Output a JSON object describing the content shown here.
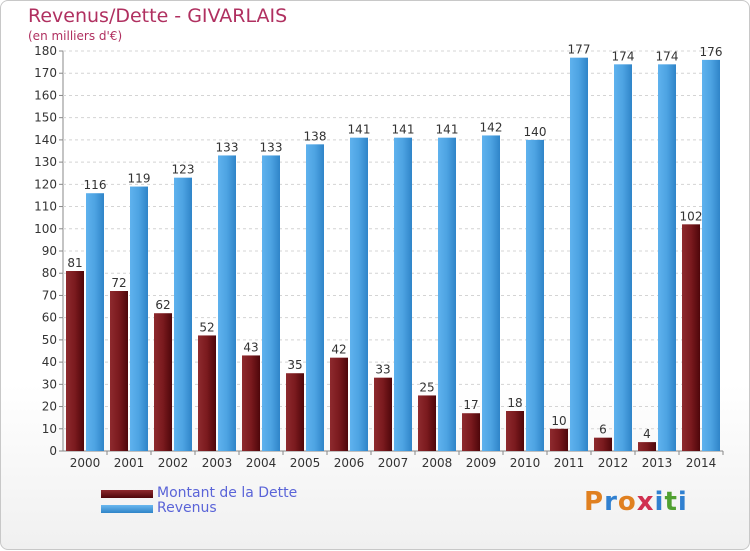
{
  "title": "Revenus/Dette - GIVARLAIS",
  "subtitle": "(en milliers d'€)",
  "brand": {
    "letters": [
      "P",
      "r",
      "o",
      "x",
      "i",
      "t",
      "i"
    ],
    "colors": [
      "#e08020",
      "#3080d0",
      "#e08020",
      "#d03050",
      "#3080d0",
      "#50a030",
      "#3080d0"
    ]
  },
  "legend": [
    {
      "label": "Montant de la Dette",
      "color": "#6b0e14"
    },
    {
      "label": "Revenus",
      "color": "#4a9fe0"
    }
  ],
  "chart_data": {
    "type": "bar",
    "categories": [
      "2000",
      "2001",
      "2002",
      "2003",
      "2004",
      "2005",
      "2006",
      "2007",
      "2008",
      "2009",
      "2010",
      "2011",
      "2012",
      "2013",
      "2014"
    ],
    "series": [
      {
        "name": "Montant de la Dette",
        "color": "#7a1a1e",
        "values": [
          81,
          72,
          62,
          52,
          43,
          35,
          42,
          33,
          25,
          17,
          18,
          10,
          6,
          4,
          102
        ]
      },
      {
        "name": "Revenus",
        "color": "#4da3e2",
        "values": [
          116,
          119,
          123,
          133,
          133,
          138,
          141,
          141,
          141,
          142,
          140,
          177,
          174,
          174,
          176
        ]
      }
    ],
    "ylim": [
      0,
      180
    ],
    "yticks": [
      0,
      10,
      20,
      30,
      40,
      50,
      60,
      70,
      80,
      90,
      100,
      110,
      120,
      130,
      140,
      150,
      160,
      170,
      180
    ],
    "grid": true,
    "legend_position": "bottom-left"
  }
}
